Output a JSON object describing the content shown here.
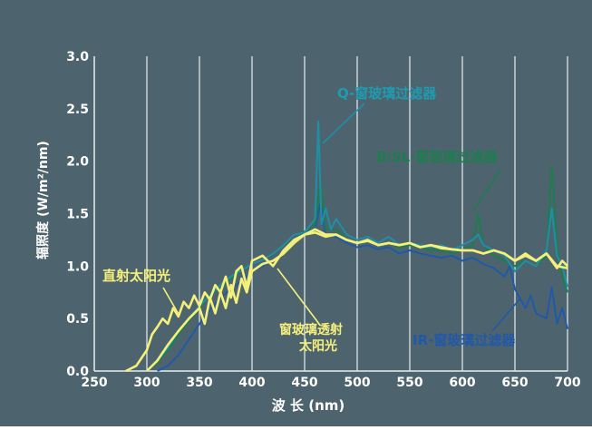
{
  "chart_data": {
    "type": "line",
    "xlabel": "波 长 (nm)",
    "ylabel": "辐照度 (W/m²/nm)",
    "xlim": [
      250,
      700
    ],
    "ylim": [
      0.0,
      3.0
    ],
    "xticks": [
      250,
      300,
      350,
      400,
      450,
      500,
      550,
      600,
      650,
      700
    ],
    "yticks": [
      "0.0",
      "0.5",
      "1.0",
      "1.5",
      "2.0",
      "2.5",
      "3.0"
    ],
    "grid": "vertical",
    "colors": {
      "background": "#4d646f",
      "grid": "#e8eef0",
      "axis_text": "#ffffff",
      "direct_sun": "#f5f07a",
      "window_glass": "#f5f07a",
      "q_filter": "#1f8fa6",
      "bsl_filter": "#1e7d4e",
      "ir_filter": "#2159a8"
    },
    "annotations": [
      {
        "text": "Q-窗玻璃过滤器",
        "color": "#1f9bb0"
      },
      {
        "text": "B/SL-窗玻璃过滤器",
        "color": "#1e7d4e"
      },
      {
        "text": "IR-窗玻璃过滤器",
        "color": "#2159a8"
      },
      {
        "text": "直射太阳光",
        "color": "#f5f07a"
      },
      {
        "text": "窗玻璃透射",
        "color": "#f5f07a"
      },
      {
        "text": "太阳光",
        "color": "#f5f07a"
      }
    ],
    "series": [
      {
        "key": "ir_filter",
        "x": [
          310,
          320,
          330,
          340,
          350,
          360,
          370,
          380,
          390,
          400,
          410,
          420,
          430,
          440,
          450,
          460,
          465,
          470,
          480,
          490,
          500,
          510,
          520,
          530,
          540,
          550,
          560,
          570,
          580,
          590,
          600,
          610,
          615,
          620,
          630,
          640,
          645,
          650,
          660,
          665,
          670,
          680,
          685,
          690,
          695,
          700
        ],
        "y": [
          0.0,
          0.05,
          0.15,
          0.3,
          0.45,
          0.58,
          0.7,
          0.78,
          0.86,
          0.95,
          1.0,
          1.05,
          1.12,
          1.25,
          1.32,
          1.35,
          1.6,
          1.3,
          1.28,
          1.22,
          1.18,
          1.2,
          1.16,
          1.18,
          1.12,
          1.15,
          1.12,
          1.1,
          1.08,
          1.1,
          1.05,
          1.08,
          1.05,
          1.02,
          0.98,
          0.9,
          1.0,
          0.78,
          0.6,
          0.72,
          0.55,
          0.5,
          0.8,
          0.45,
          0.6,
          0.4
        ]
      },
      {
        "key": "bsl_filter",
        "x": [
          300,
          310,
          320,
          330,
          340,
          350,
          360,
          370,
          380,
          390,
          400,
          410,
          420,
          430,
          440,
          450,
          460,
          465,
          470,
          480,
          490,
          500,
          510,
          520,
          530,
          540,
          550,
          560,
          570,
          580,
          590,
          600,
          610,
          615,
          620,
          630,
          640,
          650,
          660,
          670,
          680,
          685,
          690,
          695,
          700
        ],
        "y": [
          0.0,
          0.08,
          0.2,
          0.35,
          0.48,
          0.6,
          0.72,
          0.8,
          0.88,
          0.96,
          1.02,
          1.06,
          1.12,
          1.2,
          1.3,
          1.33,
          1.4,
          1.8,
          1.35,
          1.35,
          1.25,
          1.22,
          1.25,
          1.2,
          1.22,
          1.18,
          1.2,
          1.18,
          1.15,
          1.15,
          1.12,
          1.15,
          1.2,
          1.5,
          1.2,
          1.1,
          1.05,
          1.0,
          1.05,
          1.0,
          1.1,
          1.95,
          1.2,
          0.9,
          0.75
        ]
      },
      {
        "key": "q_filter",
        "x": [
          300,
          310,
          320,
          330,
          340,
          350,
          360,
          370,
          380,
          390,
          400,
          410,
          420,
          430,
          440,
          450,
          460,
          463,
          466,
          470,
          475,
          480,
          490,
          500,
          510,
          520,
          530,
          540,
          550,
          560,
          570,
          580,
          590,
          600,
          610,
          615,
          620,
          630,
          640,
          650,
          660,
          670,
          680,
          685,
          690,
          695,
          700
        ],
        "y": [
          0.0,
          0.1,
          0.22,
          0.38,
          0.5,
          0.62,
          0.72,
          0.82,
          0.9,
          0.96,
          1.02,
          1.06,
          1.12,
          1.2,
          1.3,
          1.32,
          1.45,
          2.38,
          1.4,
          1.55,
          1.35,
          1.45,
          1.3,
          1.25,
          1.28,
          1.22,
          1.28,
          1.2,
          1.22,
          1.2,
          1.18,
          1.2,
          1.15,
          1.2,
          1.25,
          1.3,
          1.2,
          1.15,
          1.1,
          0.95,
          1.05,
          1.0,
          1.15,
          1.55,
          1.1,
          1.0,
          0.8
        ]
      },
      {
        "key": "direct_sun",
        "x": [
          280,
          290,
          300,
          305,
          310,
          315,
          320,
          325,
          330,
          335,
          340,
          345,
          350,
          355,
          360,
          365,
          370,
          375,
          380,
          385,
          390,
          395,
          400,
          410,
          420,
          430,
          440,
          450,
          460,
          470,
          480,
          490,
          500,
          510,
          520,
          530,
          540,
          550,
          560,
          570,
          580,
          590,
          600,
          610,
          620,
          630,
          640,
          650,
          660,
          670,
          680,
          690,
          695,
          700
        ],
        "y": [
          0.0,
          0.05,
          0.2,
          0.35,
          0.42,
          0.5,
          0.45,
          0.6,
          0.52,
          0.66,
          0.6,
          0.72,
          0.62,
          0.75,
          0.68,
          0.82,
          0.75,
          0.9,
          0.7,
          0.95,
          1.0,
          0.8,
          1.05,
          1.1,
          1.0,
          1.15,
          1.25,
          1.3,
          1.35,
          1.3,
          1.3,
          1.25,
          1.22,
          1.25,
          1.2,
          1.22,
          1.2,
          1.22,
          1.18,
          1.2,
          1.18,
          1.16,
          1.15,
          1.15,
          1.12,
          1.15,
          1.12,
          1.05,
          1.1,
          1.05,
          1.12,
          0.98,
          1.05,
          1.0
        ]
      },
      {
        "key": "window_glass",
        "x": [
          300,
          310,
          320,
          330,
          340,
          350,
          355,
          360,
          365,
          370,
          375,
          380,
          385,
          390,
          395,
          400,
          410,
          420,
          430,
          440,
          450,
          460,
          470,
          480,
          490,
          500,
          510,
          520,
          530,
          540,
          550,
          560,
          570,
          580,
          590,
          600,
          610,
          620,
          630,
          640,
          650,
          660,
          670,
          680,
          690,
          700
        ],
        "y": [
          0.0,
          0.1,
          0.25,
          0.38,
          0.5,
          0.6,
          0.45,
          0.7,
          0.55,
          0.75,
          0.6,
          0.82,
          0.65,
          0.88,
          0.75,
          0.95,
          1.02,
          1.05,
          1.12,
          1.22,
          1.3,
          1.32,
          1.28,
          1.3,
          1.25,
          1.22,
          1.24,
          1.2,
          1.22,
          1.2,
          1.22,
          1.18,
          1.2,
          1.17,
          1.16,
          1.15,
          1.15,
          1.12,
          1.15,
          1.12,
          1.05,
          1.12,
          1.05,
          1.12,
          1.0,
          0.98
        ]
      }
    ]
  }
}
